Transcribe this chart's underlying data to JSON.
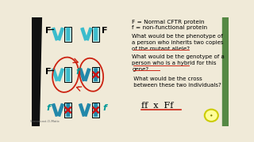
{
  "bg_color": "#f0ead8",
  "legend_lines": [
    "F = Normal CFTR protein",
    "f = non-functional protein"
  ],
  "question1": "What would be the phenotype of\na person who inherits two copies\nof the mutant allele?",
  "question2": "What would be the genotype of a\nperson who is a hybrid for this\ngene?",
  "question3": " What would be the cross\n between these two individuals?",
  "cross_text": "ff  x  Ff",
  "chrom_color": "#3bbccc",
  "chrom_dark": "#2288aa",
  "box_bg": "#aadddd",
  "x_color": "#cc1111",
  "red_color": "#cc2211",
  "yellow_circle": "#ffff99",
  "green_strip": "#558844",
  "black_strip": "#111111",
  "watermark": "Screencast-O-Matic"
}
